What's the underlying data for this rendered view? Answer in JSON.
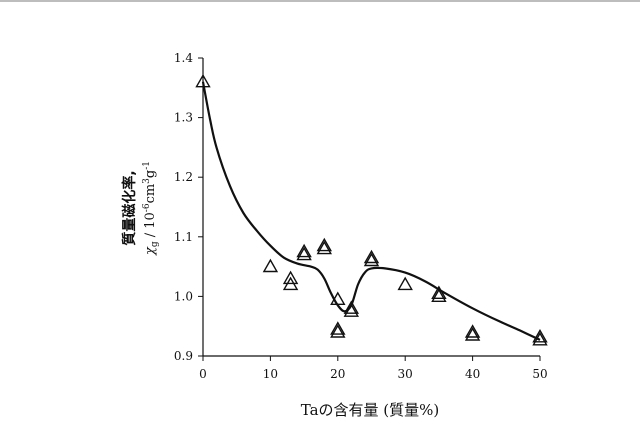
{
  "chart_data": {
    "type": "scatter",
    "title": "",
    "xlabel": "Taの含有量 (質量%)",
    "ylabel_main": "質量磁化率,",
    "ylabel_symbol": "χ",
    "ylabel_subscript": "g",
    "ylabel_unit": " / 10",
    "ylabel_exp1": "-6",
    "ylabel_unit2": "cm",
    "ylabel_exp2": "3",
    "ylabel_unit3": "g",
    "ylabel_exp3": "-1",
    "xlim": [
      0,
      50
    ],
    "ylim": [
      0.9,
      1.4
    ],
    "x_ticks": [
      0,
      10,
      20,
      30,
      40,
      50
    ],
    "y_ticks": [
      0.9,
      1.0,
      1.1,
      1.2,
      1.3,
      1.4
    ],
    "x_tick_labels": [
      "0",
      "10",
      "20",
      "30",
      "40",
      "50"
    ],
    "y_tick_labels": [
      "0.9",
      "1.0",
      "1.1",
      "1.2",
      "1.3",
      "1.4"
    ],
    "grid": false,
    "legend": "none",
    "marker": "open-triangle",
    "points": [
      {
        "x": 0,
        "y": 1.36
      },
      {
        "x": 10,
        "y": 1.05
      },
      {
        "x": 13,
        "y": 1.03
      },
      {
        "x": 13,
        "y": 1.02
      },
      {
        "x": 15,
        "y": 1.075
      },
      {
        "x": 15,
        "y": 1.07
      },
      {
        "x": 18,
        "y": 1.085
      },
      {
        "x": 18,
        "y": 1.08
      },
      {
        "x": 20,
        "y": 0.995
      },
      {
        "x": 20,
        "y": 0.945
      },
      {
        "x": 20,
        "y": 0.94
      },
      {
        "x": 22,
        "y": 0.98
      },
      {
        "x": 22,
        "y": 0.975
      },
      {
        "x": 25,
        "y": 1.065
      },
      {
        "x": 25,
        "y": 1.06
      },
      {
        "x": 30,
        "y": 1.02
      },
      {
        "x": 35,
        "y": 1.005
      },
      {
        "x": 35,
        "y": 1.0
      },
      {
        "x": 40,
        "y": 0.94
      },
      {
        "x": 40,
        "y": 0.935
      },
      {
        "x": 50,
        "y": 0.932
      },
      {
        "x": 50,
        "y": 0.927
      }
    ],
    "trend_line": [
      [
        0,
        1.36
      ],
      [
        1,
        1.3
      ],
      [
        2,
        1.25
      ],
      [
        4,
        1.185
      ],
      [
        6,
        1.14
      ],
      [
        8,
        1.11
      ],
      [
        10,
        1.085
      ],
      [
        12,
        1.065
      ],
      [
        14,
        1.055
      ],
      [
        16,
        1.05
      ],
      [
        17,
        1.045
      ],
      [
        18,
        1.03
      ],
      [
        19,
        1.005
      ],
      [
        20,
        0.985
      ],
      [
        21,
        0.975
      ],
      [
        22,
        0.985
      ],
      [
        23,
        1.02
      ],
      [
        24,
        1.04
      ],
      [
        25,
        1.047
      ],
      [
        27,
        1.047
      ],
      [
        30,
        1.04
      ],
      [
        33,
        1.025
      ],
      [
        36,
        1.005
      ],
      [
        40,
        0.98
      ],
      [
        44,
        0.958
      ],
      [
        47,
        0.943
      ],
      [
        50,
        0.927
      ]
    ]
  }
}
